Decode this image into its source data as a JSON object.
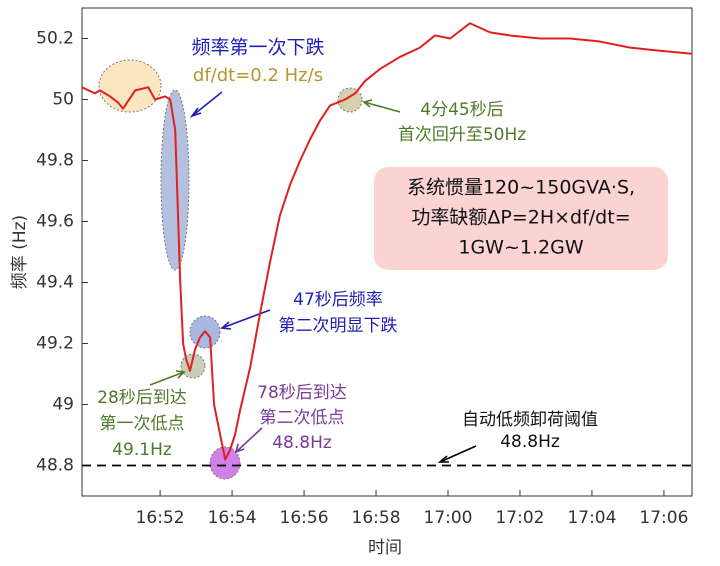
{
  "chart_data": {
    "type": "line",
    "x_label": "时间",
    "y_label": "频率 (Hz)",
    "x": [
      49.83,
      50.19,
      50.33,
      50.61,
      50.83,
      50.97,
      51.31,
      51.67,
      51.86,
      52.14,
      52.28,
      52.42,
      52.56,
      52.64,
      52.72,
      52.83,
      52.97,
      53.11,
      53.25,
      53.39,
      53.5,
      53.67,
      53.81,
      53.94,
      54.08,
      54.22,
      54.5,
      54.78,
      55.06,
      55.33,
      55.61,
      55.89,
      56.17,
      56.44,
      56.72,
      57.14,
      57.42,
      57.69,
      58.11,
      58.67,
      59.22,
      59.64,
      60.06,
      60.61,
      61.17,
      61.72,
      62.56,
      63.39,
      64.22,
      65.06,
      65.89,
      66.78
    ],
    "series": [
      {
        "color": "#e02020",
        "values": [
          50.04,
          50.02,
          50.03,
          50.01,
          49.99,
          49.97,
          50.03,
          50.04,
          50.0,
          50.01,
          50.0,
          49.9,
          49.4,
          49.2,
          49.15,
          49.11,
          49.18,
          49.22,
          49.24,
          49.22,
          49.0,
          48.9,
          48.82,
          48.85,
          48.9,
          48.98,
          49.12,
          49.3,
          49.47,
          49.62,
          49.72,
          49.8,
          49.87,
          49.93,
          49.98,
          50.0,
          50.02,
          50.06,
          50.1,
          50.14,
          50.17,
          50.21,
          50.2,
          50.25,
          50.22,
          50.21,
          50.2,
          50.2,
          50.19,
          50.17,
          50.16,
          50.15
        ]
      }
    ],
    "xlim": [
      49.83,
      66.78
    ],
    "xticks": [
      {
        "value": 52,
        "label": "16:52"
      },
      {
        "value": 54,
        "label": "16:54"
      },
      {
        "value": 56,
        "label": "16:56"
      },
      {
        "value": 58,
        "label": "16:58"
      },
      {
        "value": 60,
        "label": "17:00"
      },
      {
        "value": 62,
        "label": "17:02"
      },
      {
        "value": 64,
        "label": "17:04"
      },
      {
        "value": 66,
        "label": "17:06"
      }
    ],
    "ylim": [
      48.7,
      50.3
    ],
    "yticks": [
      48.8,
      49,
      49.2,
      49.4,
      49.6,
      49.8,
      50,
      50.2
    ],
    "threshold": 48.8,
    "annotations": [
      {
        "lines": [
          "频率第一次下跌",
          "df/dt=0.2 Hz/s"
        ]
      },
      {
        "lines": [
          "4分45秒后",
          "首次回升至50Hz"
        ]
      },
      {
        "lines": [
          "系统惯量120~150GVA·S,",
          "功率缺额ΔP=2H×df/dt=",
          "1GW~1.2GW"
        ]
      },
      {
        "lines": [
          "47秒后频率",
          "第二次明显下跌"
        ]
      },
      {
        "lines": [
          "28秒后到达",
          "第一次低点",
          "49.1Hz"
        ]
      },
      {
        "lines": [
          "78秒后到达",
          "第二次低点",
          "48.8Hz"
        ]
      },
      {
        "lines": [
          "自动低频卸荷阈值",
          "48.8Hz"
        ]
      }
    ]
  }
}
